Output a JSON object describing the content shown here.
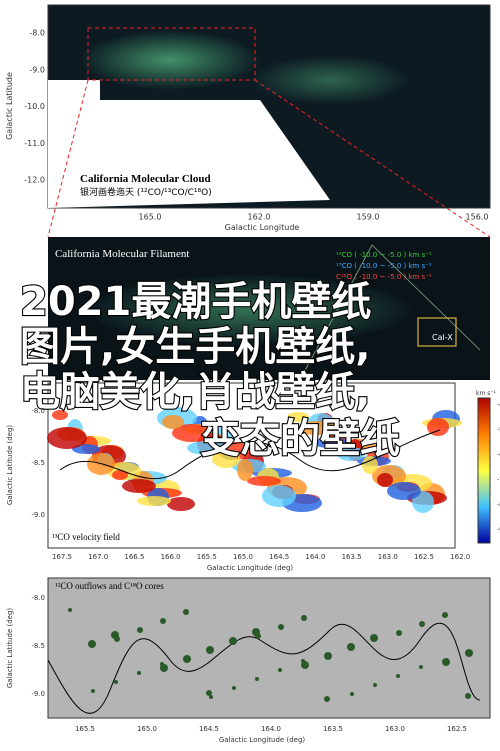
{
  "panels": [
    {
      "title": "California Molecular Cloud",
      "subtitle": "银河画卷迤天 (¹²CO/¹³CO/C¹⁸O)",
      "y_label": "Galactic Latitude",
      "x_label": "Galactic Longitude",
      "yticks": [
        "-8.0",
        "-9.0",
        "-10.0",
        "-11.0",
        "-12.0"
      ],
      "xticks": [
        "165.0",
        "162.0",
        "159.0",
        "156.0"
      ]
    },
    {
      "title": "California Molecular Filament",
      "legend": [
        "¹²CO ( -10.0 ~ -5.0 ) km s⁻¹",
        "¹³CO ( -10.0 ~ -5.0 ) km s⁻¹",
        "C¹⁸O ( -10.0 ~ -5.0 ) km s⁻¹"
      ],
      "annotation": "Cal-X"
    },
    {
      "title": "¹³CO velocity field",
      "y_label": "Galactic Latitude (deg)",
      "x_label": "Galactic Longitude (deg)",
      "yticks": [
        "-8.0",
        "-8.5",
        "-9.0"
      ],
      "xticks": [
        "167.5",
        "167.0",
        "166.5",
        "166.0",
        "165.5",
        "165.0",
        "164.5",
        "164.0",
        "163.5",
        "163.0",
        "162.5",
        "162.0"
      ],
      "colorbar_label": "km s⁻¹",
      "colorbar_ticks": [
        "-4",
        "-5",
        "-6",
        "-7",
        "-8",
        "-9"
      ]
    },
    {
      "title": "¹²CO outflows and C¹⁸O cores",
      "y_label": "Galactic Latitude (deg)",
      "x_label": "Galactic Longitude (deg)",
      "yticks": [
        "-8.0",
        "-8.5",
        "-9.0"
      ],
      "xticks": [
        "165.5",
        "165.0",
        "164.5",
        "164.0",
        "163.5",
        "163.0",
        "162.5"
      ]
    }
  ],
  "overlay": {
    "lines": [
      "2021最潮手机壁纸",
      "图片,女生手机壁纸,",
      "电脑美化,肖战壁纸,",
      "变态的壁纸"
    ]
  }
}
